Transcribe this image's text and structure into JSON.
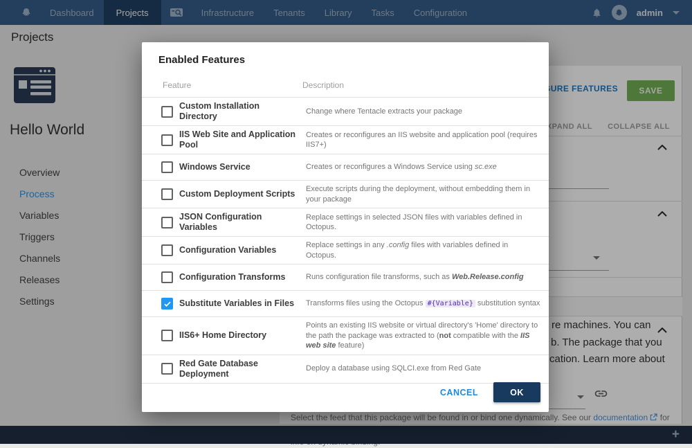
{
  "topnav": {
    "items": [
      "Dashboard",
      "Projects",
      "Infrastructure",
      "Tenants",
      "Library",
      "Tasks",
      "Configuration"
    ],
    "active_item": "Projects",
    "user": "admin"
  },
  "page": {
    "title": "Projects"
  },
  "sidebar": {
    "project_name": "Hello World",
    "items": [
      "Overview",
      "Process",
      "Variables",
      "Triggers",
      "Channels",
      "Releases",
      "Settings"
    ],
    "active_item": "Process"
  },
  "background": {
    "configure_features": "CONFIGURE FEATURES",
    "save": "SAVE",
    "expand_all": "EXPAND ALL",
    "collapse_all": "COLLAPSE ALL",
    "text_fragments": [
      "re machines. You can",
      "b. The package that you",
      "cation. Learn more about"
    ],
    "feed_help_before": "Select the feed that this package will be found in or bind one dynamically. See our ",
    "feed_help_link": "documentation",
    "feed_help_after": " for more",
    "feed_help_line2": "info on dynamic binding."
  },
  "modal": {
    "title": "Enabled Features",
    "columns": {
      "feature": "Feature",
      "description": "Description"
    },
    "features": [
      {
        "name": "Custom Installation Directory",
        "checked": false,
        "description": [
          {
            "t": "Change where Tentacle extracts your package",
            "s": "n"
          }
        ]
      },
      {
        "name": "IIS Web Site and Application Pool",
        "checked": false,
        "description": [
          {
            "t": "Creates or reconfigures an IIS website and application pool (requires IIS7+)",
            "s": "n"
          }
        ]
      },
      {
        "name": "Windows Service",
        "checked": false,
        "description": [
          {
            "t": "Creates or reconfigures a Windows Service using ",
            "s": "n"
          },
          {
            "t": "sc.exe",
            "s": "i"
          }
        ]
      },
      {
        "name": "Custom Deployment Scripts",
        "checked": false,
        "description": [
          {
            "t": "Execute scripts during the deployment, without embedding them in your package",
            "s": "n"
          }
        ]
      },
      {
        "name": "JSON Configuration Variables",
        "checked": false,
        "description": [
          {
            "t": "Replace settings in selected JSON files with variables defined in Octopus.",
            "s": "n"
          }
        ]
      },
      {
        "name": "Configuration Variables",
        "checked": false,
        "description": [
          {
            "t": "Replace settings in any ",
            "s": "n"
          },
          {
            "t": ".config",
            "s": "i"
          },
          {
            "t": " files with variables defined in Octopus.",
            "s": "n"
          }
        ]
      },
      {
        "name": "Configuration Transforms",
        "checked": false,
        "description": [
          {
            "t": "Runs configuration file transforms, such as ",
            "s": "n"
          },
          {
            "t": "Web.Release.config",
            "s": "bi"
          }
        ]
      },
      {
        "name": "Substitute Variables in Files",
        "checked": true,
        "description": [
          {
            "t": "Transforms files using the Octopus ",
            "s": "n"
          },
          {
            "t": "#{Variable}",
            "s": "c"
          },
          {
            "t": " substitution syntax",
            "s": "n"
          }
        ]
      },
      {
        "name": "IIS6+ Home Directory",
        "checked": false,
        "description": [
          {
            "t": "Points an existing IIS website or virtual directory's 'Home' directory to the path the package was extracted to (",
            "s": "n"
          },
          {
            "t": "not",
            "s": "b"
          },
          {
            "t": " compatible with the ",
            "s": "n"
          },
          {
            "t": "IIS web site",
            "s": "bi"
          },
          {
            "t": " feature)",
            "s": "n"
          }
        ]
      },
      {
        "name": "Red Gate Database Deployment",
        "checked": false,
        "description": [
          {
            "t": "Deploy a database using SQLCI.exe from Red Gate",
            "s": "n"
          }
        ]
      }
    ],
    "cancel_label": "CANCEL",
    "ok_label": "OK"
  },
  "footer": {
    "plus": "+"
  },
  "colors": {
    "checkbox_checked": "#2196f3",
    "ok_button": "#173a5e",
    "save_button": "#72b254",
    "code_bg": "#ede7f6",
    "code_text": "#512da8",
    "active_link": "#2f93e0"
  }
}
